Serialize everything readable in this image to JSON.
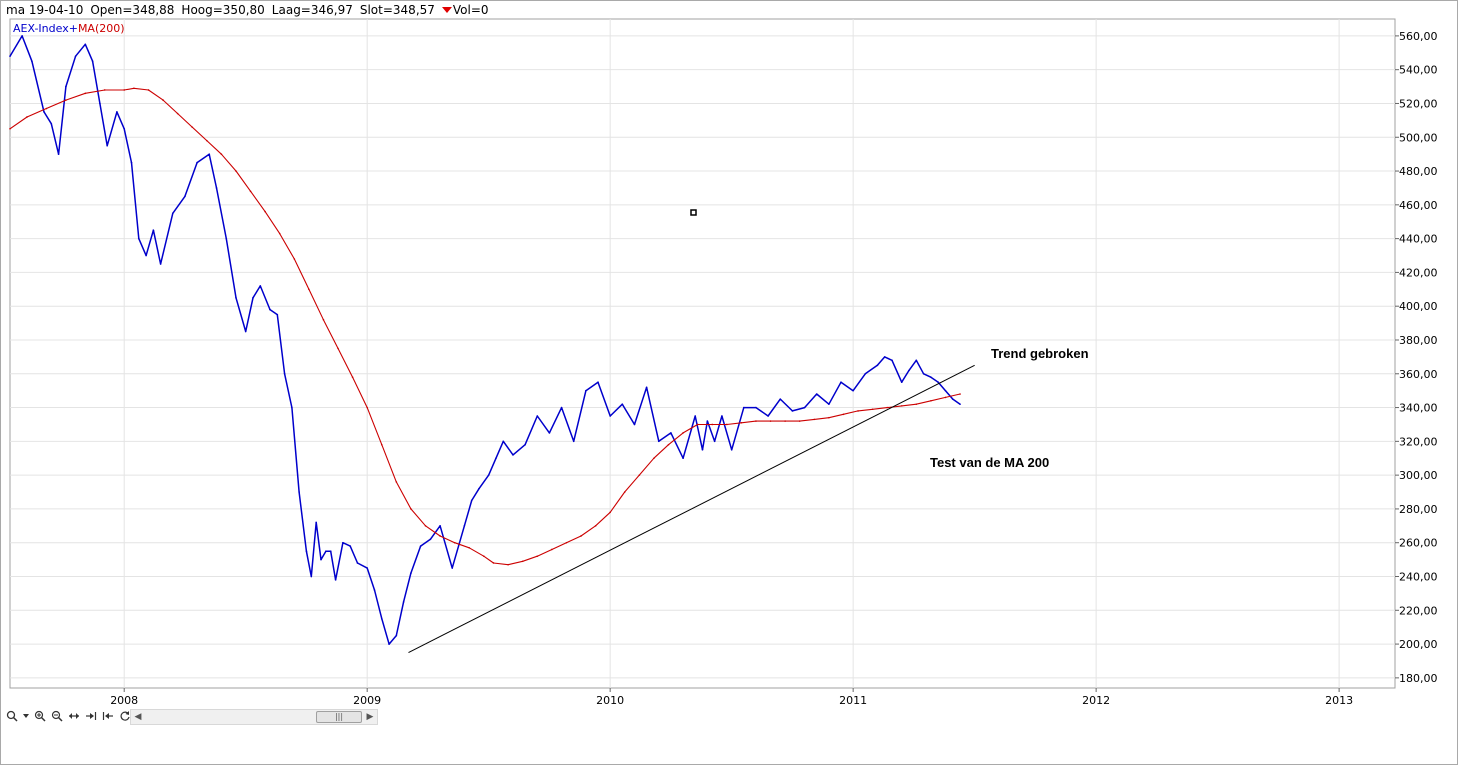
{
  "header": {
    "date": "ma 19-04-10",
    "open": "Open=348,88",
    "high": "Hoog=350,80",
    "low": "Laag=346,97",
    "close": "Slot=348,57",
    "vol": "Vol=0",
    "down_color": "#e00000"
  },
  "chart_data": {
    "type": "line",
    "legend": [
      {
        "name": "AEX-Index",
        "color": "#0000cc"
      },
      {
        "name": "MA(200)",
        "color": "#cc0000"
      }
    ],
    "y_ticks": [
      "180,00",
      "200,00",
      "220,00",
      "240,00",
      "260,00",
      "280,00",
      "300,00",
      "320,00",
      "340,00",
      "360,00",
      "380,00",
      "400,00",
      "420,00",
      "440,00",
      "460,00",
      "480,00",
      "500,00",
      "520,00",
      "540,00",
      "560,00"
    ],
    "x_ticks": [
      "2008",
      "2009",
      "2010",
      "2011",
      "2012",
      "2013"
    ],
    "ylim": [
      174,
      570
    ],
    "xlim": [
      2007.53,
      2013.23
    ],
    "grid": true,
    "series": [
      {
        "name": "AEX-Index",
        "color": "#0000cc",
        "x": [
          2007.53,
          2007.58,
          2007.62,
          2007.67,
          2007.7,
          2007.73,
          2007.76,
          2007.8,
          2007.84,
          2007.87,
          2007.9,
          2007.93,
          2007.97,
          2008.0,
          2008.03,
          2008.06,
          2008.09,
          2008.12,
          2008.15,
          2008.2,
          2008.25,
          2008.3,
          2008.35,
          2008.38,
          2008.42,
          2008.46,
          2008.5,
          2008.53,
          2008.56,
          2008.6,
          2008.63,
          2008.66,
          2008.69,
          2008.72,
          2008.75,
          2008.77,
          2008.79,
          2008.81,
          2008.83,
          2008.85,
          2008.87,
          2008.9,
          2008.93,
          2008.96,
          2009.0,
          2009.03,
          2009.06,
          2009.09,
          2009.12,
          2009.15,
          2009.18,
          2009.22,
          2009.26,
          2009.3,
          2009.35,
          2009.4,
          2009.43,
          2009.46,
          2009.5,
          2009.53,
          2009.56,
          2009.6,
          2009.65,
          2009.7,
          2009.75,
          2009.8,
          2009.85,
          2009.9,
          2009.95,
          2010.0,
          2010.05,
          2010.1,
          2010.15,
          2010.2,
          2010.25,
          2010.3,
          2010.35,
          2010.38,
          2010.4,
          2010.43,
          2010.46,
          2010.5,
          2010.55,
          2010.6,
          2010.65,
          2010.7,
          2010.75,
          2010.8,
          2010.85,
          2010.9,
          2010.95,
          2011.0,
          2011.05,
          2011.1,
          2011.13,
          2011.16,
          2011.2,
          2011.23,
          2011.26,
          2011.29,
          2011.32,
          2011.35,
          2011.38,
          2011.41,
          2011.44
        ],
        "y": [
          548,
          560,
          545,
          515,
          508,
          490,
          530,
          548,
          555,
          545,
          520,
          495,
          515,
          505,
          485,
          440,
          430,
          445,
          425,
          455,
          465,
          485,
          490,
          470,
          440,
          405,
          385,
          405,
          412,
          398,
          395,
          360,
          340,
          290,
          255,
          240,
          272,
          250,
          255,
          255,
          238,
          260,
          258,
          248,
          245,
          232,
          215,
          200,
          205,
          225,
          242,
          258,
          262,
          270,
          245,
          270,
          285,
          292,
          300,
          310,
          320,
          312,
          318,
          335,
          325,
          340,
          320,
          350,
          355,
          335,
          342,
          330,
          352,
          320,
          325,
          310,
          335,
          315,
          332,
          320,
          335,
          315,
          340,
          340,
          335,
          345,
          338,
          340,
          348,
          342,
          355,
          350,
          360,
          365,
          370,
          368,
          355,
          362,
          368,
          360,
          358,
          355,
          350,
          345,
          342
        ]
      },
      {
        "name": "MA(200)",
        "color": "#cc0000",
        "x": [
          2007.53,
          2007.6,
          2007.68,
          2007.76,
          2007.84,
          2007.92,
          2008.0,
          2008.04,
          2008.1,
          2008.16,
          2008.22,
          2008.28,
          2008.34,
          2008.4,
          2008.46,
          2008.52,
          2008.58,
          2008.64,
          2008.7,
          2008.76,
          2008.82,
          2008.88,
          2008.94,
          2009.0,
          2009.06,
          2009.12,
          2009.18,
          2009.24,
          2009.3,
          2009.36,
          2009.42,
          2009.48,
          2009.52,
          2009.58,
          2009.64,
          2009.7,
          2009.76,
          2009.82,
          2009.88,
          2009.94,
          2010.0,
          2010.06,
          2010.12,
          2010.18,
          2010.24,
          2010.3,
          2010.36,
          2010.42,
          2010.48,
          2010.54,
          2010.6,
          2010.66,
          2010.72,
          2010.78,
          2010.84,
          2010.9,
          2010.96,
          2011.02,
          2011.08,
          2011.14,
          2011.2,
          2011.26,
          2011.32,
          2011.38,
          2011.44
        ],
        "y": [
          505,
          512,
          517,
          522,
          526,
          528,
          528,
          529,
          528,
          522,
          514,
          506,
          498,
          490,
          480,
          468,
          456,
          443,
          428,
          410,
          392,
          375,
          358,
          340,
          318,
          296,
          280,
          270,
          264,
          260,
          257,
          252,
          248,
          247,
          249,
          252,
          256,
          260,
          264,
          270,
          278,
          290,
          300,
          310,
          318,
          325,
          330,
          330,
          330,
          331,
          332,
          332,
          332,
          332,
          333,
          334,
          336,
          338,
          339,
          340,
          341,
          342,
          344,
          346,
          348
        ]
      }
    ],
    "annotations": {
      "trend_label": "Trend gebroken",
      "ma_label": "Test van de MA 200",
      "trendline": {
        "x1": 2009.17,
        "y1": 195,
        "x2": 2011.5,
        "y2": 365
      }
    }
  },
  "toolbar": {
    "icons": [
      "zoom-icon",
      "dropdown-icon",
      "zoom-in-icon",
      "zoom-out-icon",
      "fit-horizontal-icon",
      "jump-end-icon",
      "jump-start-icon",
      "refresh-icon"
    ]
  }
}
